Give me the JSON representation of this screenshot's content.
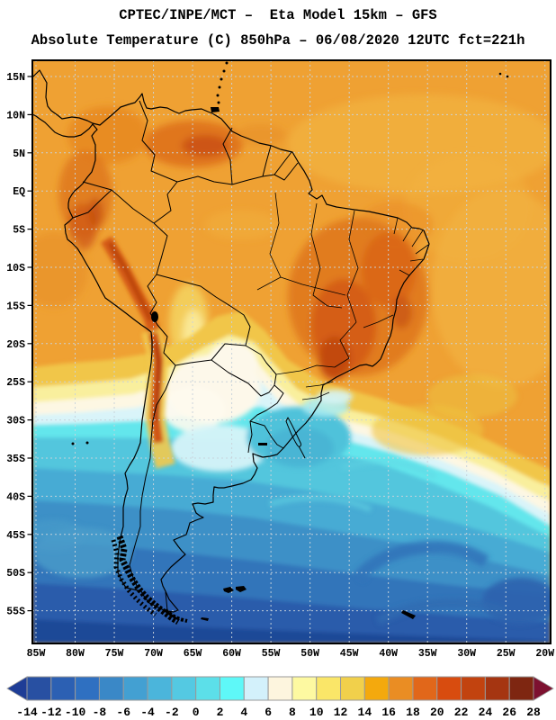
{
  "header": {
    "title_line1": "CPTEC/INPE/MCT –  Eta Model 15km – GFS",
    "title_line2": "Absolute Temperature (C) 850hPa – 06/08/2020 12UTC fct=221h"
  },
  "map": {
    "lat_labels": [
      "15N",
      "10N",
      "5N",
      "EQ",
      "5S",
      "10S",
      "15S",
      "20S",
      "25S",
      "30S",
      "35S",
      "40S",
      "45S",
      "50S",
      "55S"
    ],
    "lon_labels": [
      "85W",
      "80W",
      "75W",
      "70W",
      "65W",
      "60W",
      "55W",
      "50W",
      "45W",
      "40W",
      "35W",
      "30W",
      "25W",
      "20W"
    ],
    "grid_color": "#c9d3db",
    "border_color": "#000000",
    "base_warm_color": "#efa133"
  },
  "colorbar": {
    "tick_labels": [
      "-14",
      "-12",
      "-10",
      "-8",
      "-6",
      "-4",
      "-2",
      "0",
      "2",
      "4",
      "6",
      "8",
      "10",
      "12",
      "14",
      "16",
      "18",
      "20",
      "22",
      "24",
      "26",
      "28"
    ],
    "segment_colors": [
      "#2850a2",
      "#2c60b3",
      "#2f70c1",
      "#3a88c7",
      "#43a0d2",
      "#4bb5db",
      "#54c9e2",
      "#5cdfe9",
      "#5ef8f8",
      "#d3f1fb",
      "#fdf5de",
      "#fdf9a1",
      "#fae668",
      "#f1d04b",
      "#f4a90d",
      "#ea8d23",
      "#e1671a",
      "#d84c0f",
      "#c2430f",
      "#a53511",
      "#7e2611"
    ],
    "under_arrow_color": "#1e3d96",
    "over_arrow_color": "#7d1130"
  }
}
